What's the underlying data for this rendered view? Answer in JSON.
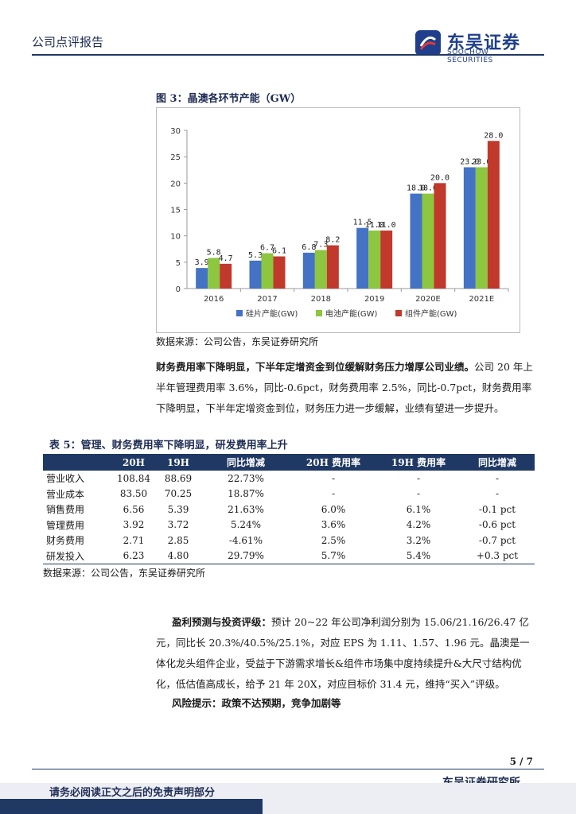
{
  "header": {
    "report_type": "公司点评报告",
    "logo_cn": "东吴证券",
    "logo_en": "SOOCHOW SECURITIES"
  },
  "figure": {
    "title": "图 3：晶澳各环节产能（GW）",
    "source": "数据来源：公司公告，东吴证券研究所"
  },
  "chart_data": {
    "type": "bar",
    "title": "晶澳各环节产能（GW）",
    "categories": [
      "2016",
      "2017",
      "2018",
      "2019",
      "2020E",
      "2021E"
    ],
    "series": [
      {
        "name": "硅片产能(GW)",
        "color": "#4472C4",
        "values": [
          3.9,
          5.3,
          6.8,
          11.5,
          18.0,
          23.0
        ],
        "labels": [
          "3.9",
          "5.3",
          "6.8",
          "11.5",
          "18.0",
          "23.0"
        ]
      },
      {
        "name": "电池产能(GW)",
        "color": "#8DC63F",
        "values": [
          5.8,
          6.7,
          7.3,
          11.0,
          18.0,
          23.0
        ],
        "labels": [
          "5.8",
          "6.7",
          "7.3",
          "11.0",
          "18.0",
          "23.0"
        ]
      },
      {
        "name": "组件产能(GW)",
        "color": "#C0392B",
        "values": [
          4.7,
          6.1,
          8.2,
          11.0,
          20.0,
          28.0
        ],
        "labels": [
          "4.7",
          "6.1",
          "8.2",
          "11.0",
          "20.0",
          "28.0"
        ]
      }
    ],
    "ylim": [
      0,
      30
    ],
    "yticks": [
      0,
      5,
      10,
      15,
      20,
      25,
      30
    ],
    "xlabel": "",
    "ylabel": "",
    "grid": false,
    "legend_position": "bottom"
  },
  "paragraph1": {
    "bold": "财务费用率下降明显，下半年定增资金到位缓解财务压力增厚公司业绩。",
    "text": "公司 20 年上半年管理费用率 3.6%，同比-0.6pct，财务费用率 2.5%，同比-0.7pct，财务费用率下降明显，下半年定增资金到位，财务压力进一步缓解，业绩有望进一步提升。"
  },
  "table": {
    "title": "表 5：管理、财务费用率下降明显，研发费用率上升",
    "headers": [
      "",
      "20H",
      "19H",
      "同比增减",
      "20H 费用率",
      "19H 费用率",
      "同比增减"
    ],
    "rows": [
      [
        "营业收入",
        "108.84",
        "88.69",
        "22.73%",
        "-",
        "-",
        "-"
      ],
      [
        "营业成本",
        "83.50",
        "70.25",
        "18.87%",
        "-",
        "-",
        "-"
      ],
      [
        "销售费用",
        "6.56",
        "5.39",
        "21.63%",
        "6.0%",
        "6.1%",
        "-0.1 pct"
      ],
      [
        "管理费用",
        "3.92",
        "3.72",
        "5.24%",
        "3.6%",
        "4.2%",
        "-0.6 pct"
      ],
      [
        "财务费用",
        "2.71",
        "2.85",
        "-4.61%",
        "2.5%",
        "3.2%",
        "-0.7 pct"
      ],
      [
        "研发投入",
        "6.23",
        "4.80",
        "29.79%",
        "5.7%",
        "5.4%",
        "+0.3 pct"
      ]
    ],
    "source": "数据来源：公司公告，东吴证券研究所"
  },
  "paragraph2": {
    "bold": "盈利预测与投资评级：",
    "text": "预计 20~22 年公司净利润分别为 15.06/21.16/26.47 亿元，同比长 20.3%/40.5%/25.1%，对应 EPS 为 1.11、1.57、1.96 元。晶澳是一体化龙头组件企业，受益于下游需求增长&组件市场集中度持续提升&大尺寸结构优化，低估值高成长，给予 21 年 20X，对应目标价 31.4 元，维持“买入”评级。"
  },
  "risk": {
    "label": "风险提示：",
    "text": "政策不达预期，竞争加剧等"
  },
  "footer": {
    "page": "5 / 7",
    "org": "东吴证券研究所",
    "disclaimer": "请务必阅读正文之后的免责声明部分"
  }
}
